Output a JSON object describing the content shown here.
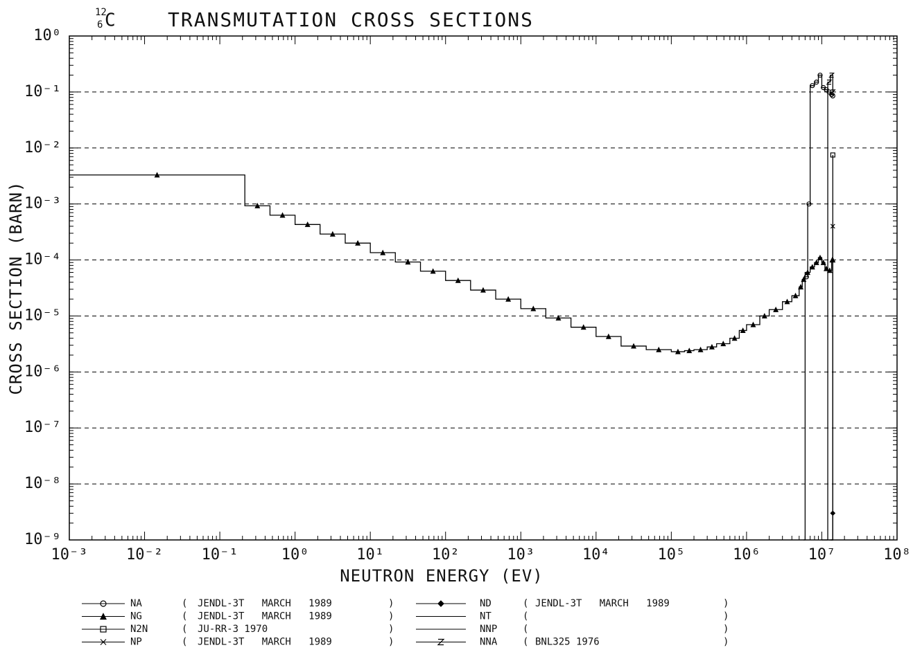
{
  "chart_data": {
    "type": "line",
    "step": "post",
    "title": "TRANSMUTATION CROSS SECTIONS",
    "nuclide": {
      "mass": "12",
      "atomic": "6",
      "symbol": "C"
    },
    "x_label": "NEUTRON ENERGY (EV)",
    "y_label": "CROSS SECTION (BARN)",
    "log_x": true,
    "log_y": true,
    "grid": "y-dashed",
    "color": "#000000",
    "xlim": [
      0.001,
      100000000
    ],
    "ylim": [
      1e-09,
      1
    ],
    "xticks": [
      {
        "value": 0.001,
        "label": "10⁻³"
      },
      {
        "value": 0.01,
        "label": "10⁻²"
      },
      {
        "value": 0.1,
        "label": "10⁻¹"
      },
      {
        "value": 1,
        "label": "10⁰"
      },
      {
        "value": 10,
        "label": "10¹"
      },
      {
        "value": 100,
        "label": "10²"
      },
      {
        "value": 1000,
        "label": "10³"
      },
      {
        "value": 10000,
        "label": "10⁴"
      },
      {
        "value": 100000,
        "label": "10⁵"
      },
      {
        "value": 1000000,
        "label": "10⁶"
      },
      {
        "value": 10000000,
        "label": "10⁷"
      },
      {
        "value": 100000000,
        "label": "10⁸"
      }
    ],
    "yticks": [
      {
        "value": 1e-09,
        "label": "10⁻⁹"
      },
      {
        "value": 1e-08,
        "label": "10⁻⁸"
      },
      {
        "value": 1e-07,
        "label": "10⁻⁷"
      },
      {
        "value": 1e-06,
        "label": "10⁻⁶"
      },
      {
        "value": 1e-05,
        "label": "10⁻⁵"
      },
      {
        "value": 0.0001,
        "label": "10⁻⁴"
      },
      {
        "value": 0.001,
        "label": "10⁻³"
      },
      {
        "value": 0.01,
        "label": "10⁻²"
      },
      {
        "value": 0.1,
        "label": "10⁻¹"
      },
      {
        "value": 1,
        "label": "10⁰"
      }
    ],
    "legend_brackets": [
      "(",
      ")"
    ],
    "series": [
      {
        "name": "NA",
        "source": "JENDL-3T   MARCH   1989",
        "marker": "circle",
        "x": [
          5700000,
          6000000,
          6500000,
          7000000,
          8000000,
          9000000,
          10000000,
          11000000,
          12000000,
          13000000,
          14000000
        ],
        "values": [
          1e-09,
          5e-05,
          0.001,
          0.13,
          0.15,
          0.2,
          0.12,
          0.11,
          0.1,
          0.09,
          0.085
        ]
      },
      {
        "name": "NG",
        "source": "JENDL-3T   MARCH   1989",
        "marker": "triangle",
        "x": [
          0.001,
          0.215,
          0.464,
          1,
          2.15,
          4.64,
          10,
          21.5,
          46.4,
          100,
          215,
          464,
          1000,
          2150,
          4640,
          10000,
          21500,
          46400,
          100000,
          150000,
          200000,
          300000,
          400000,
          600000,
          800000,
          1000000,
          1500000,
          2000000,
          3000000,
          4000000,
          5000000,
          5500000,
          6000000,
          7000000,
          8000000,
          9000000,
          10000000,
          11000000,
          12000000,
          13500000,
          14000000
        ],
        "values": [
          0.0033,
          0.00093,
          0.00063,
          0.00043,
          0.00029,
          0.0002,
          0.000135,
          9.2e-05,
          6.3e-05,
          4.3e-05,
          2.9e-05,
          2e-05,
          1.35e-05,
          9.2e-06,
          6.3e-06,
          4.3e-06,
          2.9e-06,
          2.5e-06,
          2.3e-06,
          2.4e-06,
          2.5e-06,
          2.8e-06,
          3.2e-06,
          4e-06,
          5.5e-06,
          7e-06,
          1e-05,
          1.3e-05,
          1.8e-05,
          2.3e-05,
          3.3e-05,
          4.5e-05,
          6e-05,
          7.5e-05,
          9e-05,
          0.00011,
          9e-05,
          7e-05,
          6.5e-05,
          0.0001,
          0.0001
        ]
      },
      {
        "name": "N2N",
        "source": "JU-RR-3 1970",
        "marker": "square",
        "x": [
          13000000,
          14000000
        ],
        "values": [
          1e-09,
          0.0075
        ]
      },
      {
        "name": "NP",
        "source": "JENDL-3T   MARCH   1989",
        "marker": "cross",
        "x": [
          12500000,
          14000000
        ],
        "values": [
          1e-09,
          0.0004
        ]
      },
      {
        "name": "ND",
        "source": "JENDL-3T   MARCH   1989",
        "marker": "diamond",
        "x": [
          13300000,
          14000000
        ],
        "values": [
          1e-09,
          3e-09
        ]
      },
      {
        "name": "NT",
        "source": ""
      },
      {
        "name": "NNP",
        "source": ""
      },
      {
        "name": "NNA",
        "source": "BNL325 1976",
        "marker": "z",
        "x": [
          10000000,
          12000000,
          13000000,
          14000000
        ],
        "values": [
          1e-09,
          0.15,
          0.2,
          0.1
        ]
      }
    ]
  }
}
